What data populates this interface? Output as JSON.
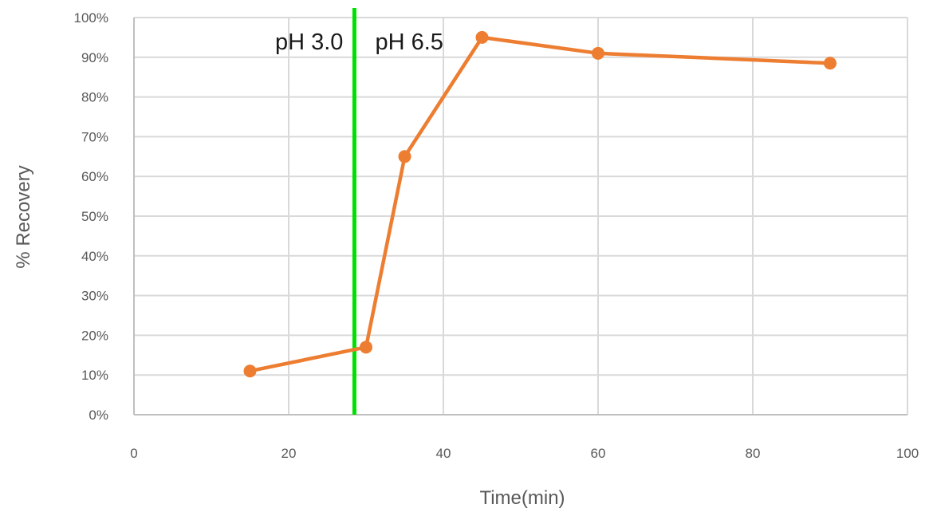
{
  "chart_data": {
    "type": "scatter",
    "title": "",
    "xlabel": "Time(min)",
    "ylabel": "% Recovery",
    "xlim": [
      0,
      100
    ],
    "ylim": [
      0,
      100
    ],
    "x_ticks": [
      0,
      20,
      40,
      60,
      80,
      100
    ],
    "x_tick_labels": [
      "0",
      "20",
      "40",
      "60",
      "80",
      "100"
    ],
    "y_ticks": [
      0,
      10,
      20,
      30,
      40,
      50,
      60,
      70,
      80,
      90,
      100
    ],
    "y_tick_labels": [
      "0%",
      "10%",
      "20%",
      "30%",
      "40%",
      "50%",
      "60%",
      "70%",
      "80%",
      "90%",
      "100%"
    ],
    "grid": true,
    "legend": "none",
    "series": [
      {
        "color": "#ed7d31",
        "line": true,
        "markers": true,
        "x": [
          15,
          30,
          35,
          45,
          60,
          90
        ],
        "y": [
          11,
          17,
          65,
          95,
          91,
          88.5
        ]
      }
    ],
    "vertical_line": {
      "x": 28.5,
      "color": "#00e000"
    },
    "annotations": [
      {
        "text": "pH 3.0",
        "side": "left-of-line"
      },
      {
        "text": "pH 6.5",
        "side": "right-of-line"
      }
    ]
  }
}
